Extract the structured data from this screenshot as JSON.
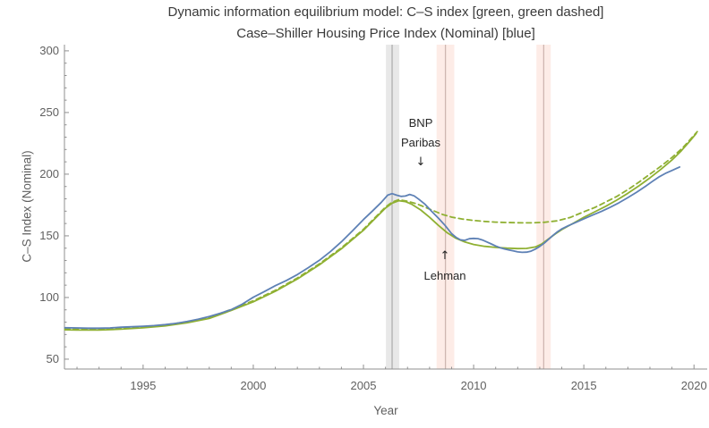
{
  "chart_data": {
    "type": "line",
    "title": "Dynamic information equilibrium model: C–S index [green, green dashed]",
    "subtitle": "Case–Shiller Housing Price Index (Nominal) [blue]",
    "xlabel": "Year",
    "ylabel": "C–S Index (Nominal)",
    "xlim": [
      1991.43,
      2020.6
    ],
    "ylim": [
      42,
      305
    ],
    "x_major_ticks": [
      1995,
      2000,
      2005,
      2010,
      2015,
      2020
    ],
    "x_minor_step": 1,
    "y_major_ticks": [
      50,
      100,
      150,
      200,
      250,
      300
    ],
    "y_minor_step": 10,
    "grid": false,
    "legend_position": "encoded-in-title",
    "bands": [
      {
        "start_year": 2006.02,
        "end_year": 2006.62,
        "line_year": 2006.3,
        "fill": "#e8e8e8",
        "line_color": "#b0b0b0"
      },
      {
        "start_year": 2008.32,
        "end_year": 2009.12,
        "line_year": 2008.72,
        "fill": "#fdece7",
        "line_color": "#cfb7b1"
      },
      {
        "start_year": 2012.85,
        "end_year": 2013.5,
        "line_year": 2013.18,
        "fill": "#fdece7",
        "line_color": "#cfb7b1"
      }
    ],
    "annotations": [
      {
        "lines": [
          "BNP",
          "Paribas"
        ],
        "arrow": "↓",
        "x_year": 2007.57
      },
      {
        "lines": [
          "Lehman"
        ],
        "arrow": "↑",
        "x_year": 2008.72
      }
    ],
    "series": [
      {
        "name": "Dynamic information equilibrium model: C–S index (counterfactual, green dashed)",
        "color": "#8FB032",
        "style": "dashed",
        "points": [
          [
            1991.45,
            74.6
          ],
          [
            1992,
            74.4
          ],
          [
            1993,
            74.4
          ],
          [
            1994,
            75.1
          ],
          [
            1995,
            76.2
          ],
          [
            1996,
            77.8
          ],
          [
            1997,
            80.3
          ],
          [
            1998,
            83.8
          ],
          [
            1999,
            90.3
          ],
          [
            2000,
            97.3
          ],
          [
            2001,
            105.8
          ],
          [
            2002,
            115.8
          ],
          [
            2003,
            127.3
          ],
          [
            2004,
            140.3
          ],
          [
            2005,
            155.3
          ],
          [
            2005.5,
            164.3
          ],
          [
            2006,
            173.3
          ],
          [
            2006.3,
            177.3
          ],
          [
            2006.6,
            179.3
          ],
          [
            2007,
            178.0
          ],
          [
            2007.4,
            176.0
          ],
          [
            2007.8,
            173.2
          ],
          [
            2008.2,
            170.2
          ],
          [
            2008.6,
            167.3
          ],
          [
            2009,
            165.2
          ],
          [
            2009.5,
            163.6
          ],
          [
            2010,
            162.5
          ],
          [
            2010.5,
            161.7
          ],
          [
            2011,
            161.1
          ],
          [
            2011.5,
            160.8
          ],
          [
            2012,
            160.6
          ],
          [
            2012.6,
            160.5
          ],
          [
            2013.2,
            161.0
          ],
          [
            2013.8,
            162.2
          ],
          [
            2014.4,
            165.0
          ],
          [
            2015,
            169.5
          ],
          [
            2015.5,
            173.0
          ],
          [
            2016,
            177.5
          ],
          [
            2016.5,
            182.0
          ],
          [
            2017,
            187.5
          ],
          [
            2017.5,
            193.5
          ],
          [
            2018,
            200.0
          ],
          [
            2018.5,
            206.5
          ],
          [
            2019,
            213.5
          ],
          [
            2019.5,
            221.5
          ],
          [
            2020.15,
            234.5
          ]
        ]
      },
      {
        "name": "Dynamic information equilibrium model: C–S index (green)",
        "color": "#8FB032",
        "style": "solid",
        "points": [
          [
            1991.45,
            73.8
          ],
          [
            1992,
            73.6
          ],
          [
            1993,
            73.6
          ],
          [
            1994,
            74.3
          ],
          [
            1995,
            75.4
          ],
          [
            1996,
            77.0
          ],
          [
            1997,
            79.5
          ],
          [
            1998,
            83.0
          ],
          [
            1999,
            89.5
          ],
          [
            2000,
            96.5
          ],
          [
            2001,
            105.0
          ],
          [
            2002,
            115.0
          ],
          [
            2003,
            126.5
          ],
          [
            2004,
            139.5
          ],
          [
            2005,
            154.5
          ],
          [
            2005.5,
            163.5
          ],
          [
            2006,
            172.5
          ],
          [
            2006.3,
            176.5
          ],
          [
            2006.6,
            178.5
          ],
          [
            2006.9,
            177.8
          ],
          [
            2007.2,
            175.5
          ],
          [
            2007.6,
            171.0
          ],
          [
            2008,
            165.0
          ],
          [
            2008.4,
            158.5
          ],
          [
            2008.8,
            152.5
          ],
          [
            2009.2,
            148.0
          ],
          [
            2009.6,
            145.0
          ],
          [
            2010,
            143.0
          ],
          [
            2010.5,
            141.5
          ],
          [
            2011,
            140.6
          ],
          [
            2011.5,
            140.0
          ],
          [
            2012,
            139.7
          ],
          [
            2012.4,
            139.8
          ],
          [
            2012.8,
            141.0
          ],
          [
            2013.1,
            143.5
          ],
          [
            2013.4,
            147.5
          ],
          [
            2013.7,
            151.5
          ],
          [
            2014,
            155.0
          ],
          [
            2014.5,
            160.0
          ],
          [
            2015,
            165.0
          ],
          [
            2015.5,
            169.5
          ],
          [
            2016,
            174.0
          ],
          [
            2016.5,
            179.0
          ],
          [
            2017,
            184.5
          ],
          [
            2017.5,
            190.5
          ],
          [
            2018,
            197.0
          ],
          [
            2018.5,
            204.0
          ],
          [
            2019,
            211.5
          ],
          [
            2019.4,
            218.5
          ],
          [
            2019.8,
            226.5
          ],
          [
            2020.1,
            233.0
          ]
        ]
      },
      {
        "name": "Case–Shiller Housing Price Index (Nominal) (blue)",
        "color": "#5E81B5",
        "style": "solid",
        "points": [
          [
            1991.45,
            75.5
          ],
          [
            1992,
            75.3
          ],
          [
            1992.5,
            75.1
          ],
          [
            1993,
            75.1
          ],
          [
            1993.5,
            75.3
          ],
          [
            1994,
            75.9
          ],
          [
            1994.5,
            76.3
          ],
          [
            1995,
            76.7
          ],
          [
            1995.5,
            77.2
          ],
          [
            1996,
            78.0
          ],
          [
            1996.5,
            79.0
          ],
          [
            1997,
            80.6
          ],
          [
            1997.5,
            82.4
          ],
          [
            1998,
            84.6
          ],
          [
            1998.5,
            87.2
          ],
          [
            1999,
            90.2
          ],
          [
            1999.5,
            94.6
          ],
          [
            2000,
            100.2
          ],
          [
            2000.5,
            104.8
          ],
          [
            2001,
            109.6
          ],
          [
            2001.5,
            113.8
          ],
          [
            2002,
            118.6
          ],
          [
            2002.5,
            124.2
          ],
          [
            2003,
            130.2
          ],
          [
            2003.5,
            137.2
          ],
          [
            2004,
            145.2
          ],
          [
            2004.5,
            154.0
          ],
          [
            2005,
            163.2
          ],
          [
            2005.4,
            170.0
          ],
          [
            2005.8,
            177.0
          ],
          [
            2006.1,
            183.0
          ],
          [
            2006.3,
            184.2
          ],
          [
            2006.5,
            183.0
          ],
          [
            2006.7,
            182.0
          ],
          [
            2006.9,
            182.3
          ],
          [
            2007.1,
            183.6
          ],
          [
            2007.3,
            182.4
          ],
          [
            2007.5,
            179.8
          ],
          [
            2007.8,
            175.5
          ],
          [
            2008.1,
            169.8
          ],
          [
            2008.4,
            164.4
          ],
          [
            2008.7,
            158.5
          ],
          [
            2009,
            151.8
          ],
          [
            2009.2,
            148.8
          ],
          [
            2009.4,
            146.8
          ],
          [
            2009.6,
            146.3
          ],
          [
            2009.8,
            147.6
          ],
          [
            2010,
            147.9
          ],
          [
            2010.2,
            147.7
          ],
          [
            2010.4,
            146.6
          ],
          [
            2010.6,
            145.0
          ],
          [
            2010.8,
            143.4
          ],
          [
            2011,
            141.8
          ],
          [
            2011.2,
            140.4
          ],
          [
            2011.4,
            139.4
          ],
          [
            2011.6,
            138.6
          ],
          [
            2011.8,
            137.8
          ],
          [
            2012,
            137.0
          ],
          [
            2012.2,
            136.6
          ],
          [
            2012.4,
            136.8
          ],
          [
            2012.6,
            137.6
          ],
          [
            2012.8,
            139.2
          ],
          [
            2013,
            141.4
          ],
          [
            2013.2,
            144.0
          ],
          [
            2013.4,
            147.2
          ],
          [
            2013.6,
            150.4
          ],
          [
            2013.8,
            153.2
          ],
          [
            2014,
            155.6
          ],
          [
            2014.3,
            158.2
          ],
          [
            2014.6,
            160.6
          ],
          [
            2015,
            163.8
          ],
          [
            2015.4,
            166.8
          ],
          [
            2015.8,
            169.8
          ],
          [
            2016.2,
            173.2
          ],
          [
            2016.6,
            176.8
          ],
          [
            2017,
            181.0
          ],
          [
            2017.4,
            185.4
          ],
          [
            2017.8,
            190.2
          ],
          [
            2018.1,
            194.0
          ],
          [
            2018.4,
            197.6
          ],
          [
            2018.7,
            200.6
          ],
          [
            2019,
            203.0
          ],
          [
            2019.2,
            204.6
          ],
          [
            2019.35,
            205.8
          ]
        ]
      }
    ]
  },
  "colors": {
    "blue": "#5E81B5",
    "green": "#8FB032",
    "axis": "#8f8f8f",
    "tick_label": "#606060",
    "title": "#3a3a3a",
    "annotation": "#262626"
  }
}
